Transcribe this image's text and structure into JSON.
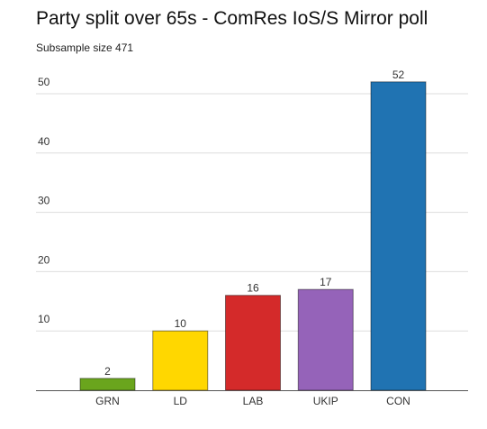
{
  "chart_data": {
    "type": "bar",
    "title": "Party split over 65s - ComRes IoS/S Mirror poll",
    "subtitle": "Subsample size 471",
    "categories": [
      "GRN",
      "LD",
      "LAB",
      "UKIP",
      "CON"
    ],
    "values": [
      2,
      10,
      16,
      17,
      52
    ],
    "colors": [
      "#6aa51d",
      "#ffd700",
      "#d42a2a",
      "#9563b9",
      "#2073b2"
    ],
    "data_labels": [
      "2",
      "10",
      "16",
      "17",
      "52"
    ],
    "yticks": [
      10,
      20,
      30,
      40,
      50
    ],
    "ytick_labels": [
      "10",
      "20",
      "30",
      "40",
      "50"
    ],
    "ylim": [
      0,
      52
    ],
    "xlabel": "",
    "ylabel": "",
    "grid": true,
    "legend": "none"
  }
}
